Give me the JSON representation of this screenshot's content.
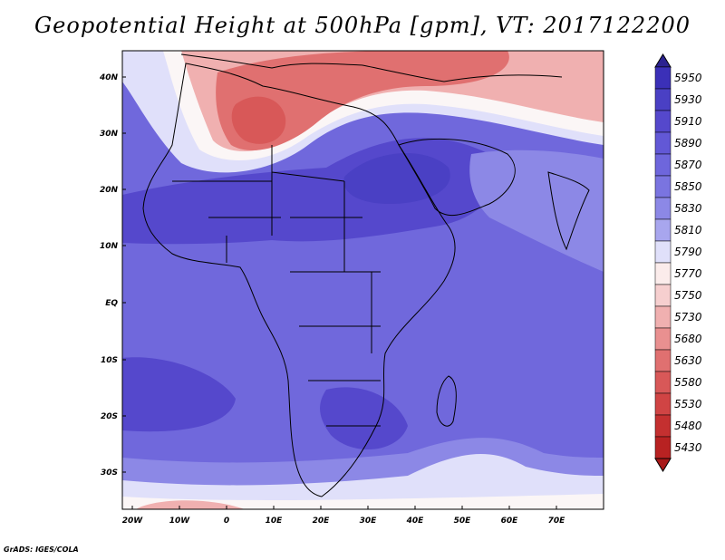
{
  "title": "Geopotential Height at 500hPa [gpm], VT: 2017122200",
  "footer": "GrADS: IGES/COLA",
  "axes": {
    "lat_ticks": [
      "40N",
      "30N",
      "20N",
      "10N",
      "EQ",
      "10S",
      "20S",
      "30S"
    ],
    "lon_ticks": [
      "20W",
      "10W",
      "0",
      "10E",
      "20E",
      "30E",
      "40E",
      "50E",
      "60E",
      "70E"
    ]
  },
  "colorbar": {
    "levels": [
      "5950",
      "5930",
      "5910",
      "5890",
      "5870",
      "5850",
      "5830",
      "5810",
      "5790",
      "5770",
      "5750",
      "5730",
      "5680",
      "5630",
      "5580",
      "5530",
      "5480",
      "5430"
    ],
    "colors": [
      "#3b30b8",
      "#4a40c4",
      "#5548cc",
      "#6258d6",
      "#6e66dc",
      "#7a74e0",
      "#8c88e6",
      "#a8a6ee",
      "#e0e0fa",
      "#fbeceb",
      "#f6cfcf",
      "#f0b0b0",
      "#e99090",
      "#e07070",
      "#d85858",
      "#d04444",
      "#c43030",
      "#b82222"
    ],
    "top_arrow_color": "#2c2290",
    "bottom_arrow_color": "#a81818"
  },
  "map_colors": {
    "base": "#7068dc",
    "deep": "#5548cc",
    "deepest": "#4a40c4",
    "light": "#8c88e6",
    "pale": "#e0e0fa",
    "white": "#fbf6f6",
    "pink": "#f0b0b0",
    "red": "#e07070",
    "dark_red": "#d85858"
  }
}
